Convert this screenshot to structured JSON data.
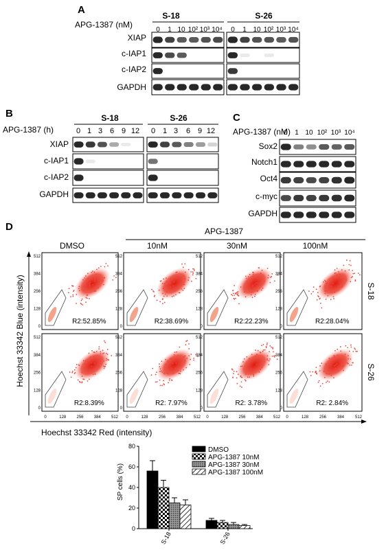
{
  "panel_a": {
    "letter": "A",
    "treatment_label": "APG-1387 (nM)",
    "groups": [
      "S-18",
      "S-26"
    ],
    "doses": [
      "0",
      "1",
      "10",
      "10²",
      "10³",
      "10⁴"
    ],
    "rows": [
      "XIAP",
      "c-IAP1",
      "c-IAP2",
      "GAPDH"
    ]
  },
  "panel_b": {
    "letter": "B",
    "treatment_label": "APG-1387 (h)",
    "groups": [
      "S-18",
      "S-26"
    ],
    "times": [
      "0",
      "1",
      "3",
      "6",
      "9",
      "12"
    ],
    "rows": [
      "XIAP",
      "c-IAP1",
      "c-IAP2",
      "GAPDH"
    ]
  },
  "panel_c": {
    "letter": "C",
    "treatment_label": "APG-1387 (nM)",
    "doses": [
      "0",
      "1",
      "10",
      "10²",
      "10³",
      "10⁴"
    ],
    "rows": [
      "Sox2",
      "Notch1",
      "Oct4",
      "c-myc",
      "GAPDH"
    ]
  },
  "panel_d": {
    "letter": "D",
    "treatment_header": "APG-1387",
    "columns": [
      "DMSO",
      "10nM",
      "30nM",
      "100nM"
    ],
    "rows": [
      "S-18",
      "S-26"
    ],
    "r2": [
      [
        "R2:52.85%",
        "R2:38.69%",
        "R2:22.23%",
        "R2:28.04%"
      ],
      [
        "R2:8.39%",
        "R2: 7.97%",
        "R2: 3.78%",
        "R2: 2.84%"
      ]
    ],
    "y_axis_label": "Hoechst 33342 Blue (intensity)",
    "x_axis_label": "Hoechst 33342 Red (intensity)",
    "y_ticks": [
      "512",
      "384",
      "256",
      "128",
      "0"
    ],
    "x_ticks": [
      "0",
      "128",
      "256",
      "384",
      "512"
    ]
  },
  "chart_data": {
    "type": "bar",
    "ylabel": "SP cells (%)",
    "ylim": [
      0,
      80
    ],
    "yticks": [
      0,
      20,
      40,
      60,
      80
    ],
    "categories": [
      "S-18",
      "S-26"
    ],
    "legend_position": "top-right",
    "series": [
      {
        "name": "DMSO",
        "values": [
          56,
          8
        ],
        "errors": [
          10,
          2
        ]
      },
      {
        "name": "APG-1387 10nM",
        "values": [
          40,
          6
        ],
        "errors": [
          7,
          2
        ]
      },
      {
        "name": "APG-1387 30nM",
        "values": [
          25,
          4
        ],
        "errors": [
          5,
          2
        ]
      },
      {
        "name": "APG-1387 100nM",
        "values": [
          23,
          3
        ],
        "errors": [
          5,
          1
        ]
      }
    ]
  }
}
